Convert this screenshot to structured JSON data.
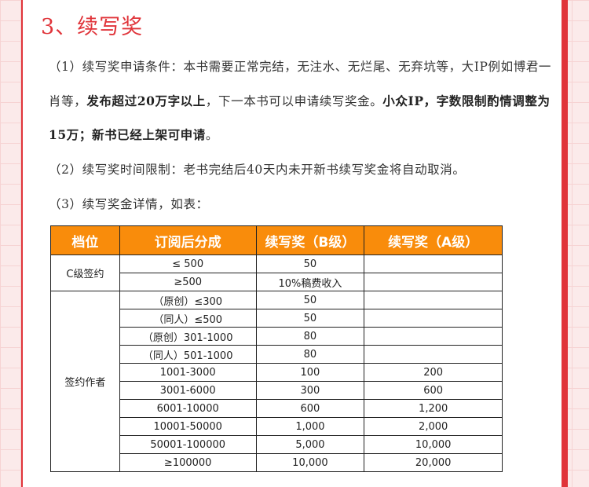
{
  "section_title": "3、续写奖",
  "paragraphs": {
    "p1_line1": "（1）续写奖申请条件：本书需要正常完结，无注水、无烂尾、无弃坑等，大IP例如博君一",
    "p1_line2_a": "肖等，",
    "p1_line2_b": "发布超过20万字以上",
    "p1_line2_c": "，下一本书可以申请续写奖金。",
    "p1_line2_d": "小众IP，字数限制酌情调整为",
    "p1_line3": "15万；新书已经上架可申请",
    "p1_line3_end": "。",
    "p2": "（2）续写奖时间限制：老书完结后40天内未开新书续写奖金将自动取消。",
    "p3": "（3）续写奖金详情，如表："
  },
  "table": {
    "headers": [
      "档位",
      "订阅后分成",
      "续写奖（B级）",
      "续写奖（A级）"
    ],
    "groups": [
      {
        "label": "C级签约",
        "rows": [
          [
            "≤ 500",
            "50",
            ""
          ],
          [
            "≥500",
            "10%稿费收入",
            ""
          ]
        ]
      },
      {
        "label": "签约作者",
        "rows": [
          [
            "（原创）≤300",
            "50",
            ""
          ],
          [
            "（同人）≤500",
            "50",
            ""
          ],
          [
            "（原创）301-1000",
            "80",
            ""
          ],
          [
            "（同人）501-1000",
            "80",
            ""
          ],
          [
            "1001-3000",
            "100",
            "200"
          ],
          [
            "3001-6000",
            "300",
            "600"
          ],
          [
            "6001-10000",
            "600",
            "1,200"
          ],
          [
            "10001-50000",
            "1,000",
            "2,000"
          ],
          [
            "50001-100000",
            "5,000",
            "10,000"
          ],
          [
            "≥100000",
            "10,000",
            "20,000"
          ]
        ]
      }
    ]
  },
  "colors": {
    "accent": "#e0343a",
    "header_bg": "#f98c0b",
    "highlight": "#fbb26a"
  }
}
